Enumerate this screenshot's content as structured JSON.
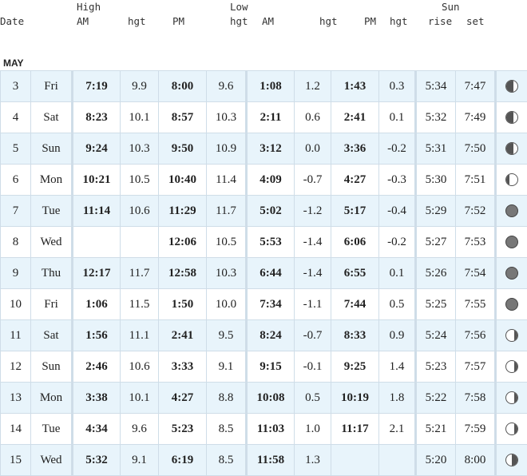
{
  "header": {
    "date": "Date",
    "high": "High",
    "high_am": "AM",
    "high_hgt": "hgt",
    "high_pm": "PM",
    "low": "Low",
    "low_am": "AM",
    "low_am_hgt": "hgt",
    "low_hgt": "hgt",
    "low_pm": "PM",
    "low_pm_hgt": "hgt",
    "sun": "Sun",
    "rise": "rise",
    "set": "set"
  },
  "month": "MAY",
  "rows": [
    {
      "day": "3",
      "dow": "Fri",
      "high_am": "7:19",
      "high_am_hgt": "9.9",
      "high_pm": "8:00",
      "high_pm_hgt": "9.6",
      "low_am": "1:08",
      "low_am_hgt": "1.2",
      "low_pm": "1:43",
      "low_pm_hgt": "0.3",
      "rise": "5:34",
      "set": "7:47",
      "moon": "waxing-crescent-icon"
    },
    {
      "day": "4",
      "dow": "Sat",
      "high_am": "8:23",
      "high_am_hgt": "10.1",
      "high_pm": "8:57",
      "high_pm_hgt": "10.3",
      "low_am": "2:11",
      "low_am_hgt": "0.6",
      "low_pm": "2:41",
      "low_pm_hgt": "0.1",
      "rise": "5:32",
      "set": "7:49",
      "moon": "waxing-crescent-icon"
    },
    {
      "day": "5",
      "dow": "Sun",
      "high_am": "9:24",
      "high_am_hgt": "10.3",
      "high_pm": "9:50",
      "high_pm_hgt": "10.9",
      "low_am": "3:12",
      "low_am_hgt": "0.0",
      "low_pm": "3:36",
      "low_pm_hgt": "-0.2",
      "rise": "5:31",
      "set": "7:50",
      "moon": "waxing-crescent-icon"
    },
    {
      "day": "6",
      "dow": "Mon",
      "high_am": "10:21",
      "high_am_hgt": "10.5",
      "high_pm": "10:40",
      "high_pm_hgt": "11.4",
      "low_am": "4:09",
      "low_am_hgt": "-0.7",
      "low_pm": "4:27",
      "low_pm_hgt": "-0.3",
      "rise": "5:30",
      "set": "7:51",
      "moon": "waxing-gibbous-icon"
    },
    {
      "day": "7",
      "dow": "Tue",
      "high_am": "11:14",
      "high_am_hgt": "10.6",
      "high_pm": "11:29",
      "high_pm_hgt": "11.7",
      "low_am": "5:02",
      "low_am_hgt": "-1.2",
      "low_pm": "5:17",
      "low_pm_hgt": "-0.4",
      "rise": "5:29",
      "set": "7:52",
      "moon": "full-moon-icon"
    },
    {
      "day": "8",
      "dow": "Wed",
      "high_am": "",
      "high_am_hgt": "",
      "high_pm": "12:06",
      "high_pm_hgt": "10.5",
      "low_am": "5:53",
      "low_am_hgt": "-1.4",
      "low_pm": "6:06",
      "low_pm_hgt": "-0.2",
      "rise": "5:27",
      "set": "7:53",
      "moon": "full-moon-icon"
    },
    {
      "day": "9",
      "dow": "Thu",
      "high_am": "12:17",
      "high_am_hgt": "11.7",
      "high_pm": "12:58",
      "high_pm_hgt": "10.3",
      "low_am": "6:44",
      "low_am_hgt": "-1.4",
      "low_pm": "6:55",
      "low_pm_hgt": "0.1",
      "rise": "5:26",
      "set": "7:54",
      "moon": "full-moon-icon"
    },
    {
      "day": "10",
      "dow": "Fri",
      "high_am": "1:06",
      "high_am_hgt": "11.5",
      "high_pm": "1:50",
      "high_pm_hgt": "10.0",
      "low_am": "7:34",
      "low_am_hgt": "-1.1",
      "low_pm": "7:44",
      "low_pm_hgt": "0.5",
      "rise": "5:25",
      "set": "7:55",
      "moon": "full-moon-icon"
    },
    {
      "day": "11",
      "dow": "Sat",
      "high_am": "1:56",
      "high_am_hgt": "11.1",
      "high_pm": "2:41",
      "high_pm_hgt": "9.5",
      "low_am": "8:24",
      "low_am_hgt": "-0.7",
      "low_pm": "8:33",
      "low_pm_hgt": "0.9",
      "rise": "5:24",
      "set": "7:56",
      "moon": "waning-gibbous-icon"
    },
    {
      "day": "12",
      "dow": "Sun",
      "high_am": "2:46",
      "high_am_hgt": "10.6",
      "high_pm": "3:33",
      "high_pm_hgt": "9.1",
      "low_am": "9:15",
      "low_am_hgt": "-0.1",
      "low_pm": "9:25",
      "low_pm_hgt": "1.4",
      "rise": "5:23",
      "set": "7:57",
      "moon": "waning-gibbous-icon"
    },
    {
      "day": "13",
      "dow": "Mon",
      "high_am": "3:38",
      "high_am_hgt": "10.1",
      "high_pm": "4:27",
      "high_pm_hgt": "8.8",
      "low_am": "10:08",
      "low_am_hgt": "0.5",
      "low_pm": "10:19",
      "low_pm_hgt": "1.8",
      "rise": "5:22",
      "set": "7:58",
      "moon": "waning-gibbous-icon"
    },
    {
      "day": "14",
      "dow": "Tue",
      "high_am": "4:34",
      "high_am_hgt": "9.6",
      "high_pm": "5:23",
      "high_pm_hgt": "8.5",
      "low_am": "11:03",
      "low_am_hgt": "1.0",
      "low_pm": "11:17",
      "low_pm_hgt": "2.1",
      "rise": "5:21",
      "set": "7:59",
      "moon": "waning-gibbous-icon"
    },
    {
      "day": "15",
      "dow": "Wed",
      "high_am": "5:32",
      "high_am_hgt": "9.1",
      "high_pm": "6:19",
      "high_pm_hgt": "8.5",
      "low_am": "11:58",
      "low_am_hgt": "1.3",
      "low_pm": "",
      "low_pm_hgt": "",
      "rise": "5:20",
      "set": "8:00",
      "moon": "last-quarter-icon"
    }
  ]
}
